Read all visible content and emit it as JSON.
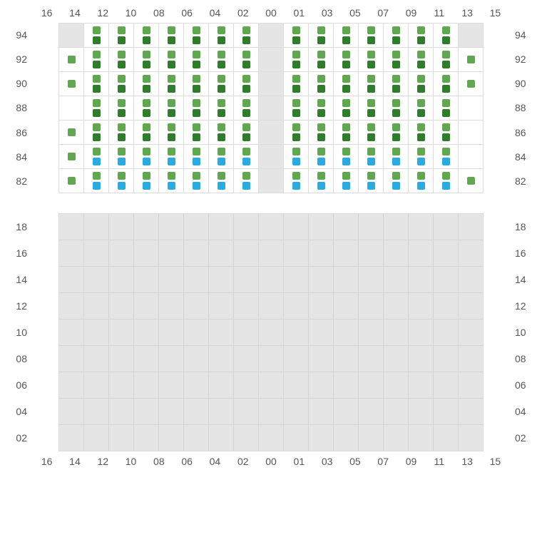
{
  "colors": {
    "green_light": "#5fa850",
    "green_dark": "#2f7d2a",
    "blue": "#29abe2",
    "cell_bg": "#ffffff",
    "grid_bg": "#e5e5e5",
    "border": "#dcdcdc",
    "text": "#555555"
  },
  "columns": [
    "16",
    "14",
    "12",
    "10",
    "08",
    "06",
    "04",
    "02",
    "00",
    "01",
    "03",
    "05",
    "07",
    "09",
    "11",
    "13",
    "15"
  ],
  "upper": {
    "row_labels": [
      "94",
      "92",
      "90",
      "88",
      "86",
      "84",
      "82"
    ],
    "gap_col_index": 8,
    "rows": [
      {
        "label": "94",
        "cells": [
          null,
          [
            "g",
            "d"
          ],
          [
            "g",
            "d"
          ],
          [
            "g",
            "d"
          ],
          [
            "g",
            "d"
          ],
          [
            "g",
            "d"
          ],
          [
            "g",
            "d"
          ],
          [
            "g",
            "d"
          ],
          null,
          [
            "g",
            "d"
          ],
          [
            "g",
            "d"
          ],
          [
            "g",
            "d"
          ],
          [
            "g",
            "d"
          ],
          [
            "g",
            "d"
          ],
          [
            "g",
            "d"
          ],
          [
            "g",
            "d"
          ],
          null
        ]
      },
      {
        "label": "92",
        "cells": [
          [
            "g"
          ],
          [
            "g",
            "d"
          ],
          [
            "g",
            "d"
          ],
          [
            "g",
            "d"
          ],
          [
            "g",
            "d"
          ],
          [
            "g",
            "d"
          ],
          [
            "g",
            "d"
          ],
          [
            "g",
            "d"
          ],
          null,
          [
            "g",
            "d"
          ],
          [
            "g",
            "d"
          ],
          [
            "g",
            "d"
          ],
          [
            "g",
            "d"
          ],
          [
            "g",
            "d"
          ],
          [
            "g",
            "d"
          ],
          [
            "g",
            "d"
          ],
          [
            "g"
          ]
        ]
      },
      {
        "label": "90",
        "cells": [
          [
            "g"
          ],
          [
            "g",
            "d"
          ],
          [
            "g",
            "d"
          ],
          [
            "g",
            "d"
          ],
          [
            "g",
            "d"
          ],
          [
            "g",
            "d"
          ],
          [
            "g",
            "d"
          ],
          [
            "g",
            "d"
          ],
          null,
          [
            "g",
            "d"
          ],
          [
            "g",
            "d"
          ],
          [
            "g",
            "d"
          ],
          [
            "g",
            "d"
          ],
          [
            "g",
            "d"
          ],
          [
            "g",
            "d"
          ],
          [
            "g",
            "d"
          ],
          [
            "g"
          ]
        ]
      },
      {
        "label": "88",
        "cells": [
          [],
          [
            "g",
            "d"
          ],
          [
            "g",
            "d"
          ],
          [
            "g",
            "d"
          ],
          [
            "g",
            "d"
          ],
          [
            "g",
            "d"
          ],
          [
            "g",
            "d"
          ],
          [
            "g",
            "d"
          ],
          null,
          [
            "g",
            "d"
          ],
          [
            "g",
            "d"
          ],
          [
            "g",
            "d"
          ],
          [
            "g",
            "d"
          ],
          [
            "g",
            "d"
          ],
          [
            "g",
            "d"
          ],
          [
            "g",
            "d"
          ],
          []
        ]
      },
      {
        "label": "86",
        "cells": [
          [
            "g"
          ],
          [
            "g",
            "d"
          ],
          [
            "g",
            "d"
          ],
          [
            "g",
            "d"
          ],
          [
            "g",
            "d"
          ],
          [
            "g",
            "d"
          ],
          [
            "g",
            "d"
          ],
          [
            "g",
            "d"
          ],
          null,
          [
            "g",
            "d"
          ],
          [
            "g",
            "d"
          ],
          [
            "g",
            "d"
          ],
          [
            "g",
            "d"
          ],
          [
            "g",
            "d"
          ],
          [
            "g",
            "d"
          ],
          [
            "g",
            "d"
          ],
          []
        ]
      },
      {
        "label": "84",
        "cells": [
          [
            "g"
          ],
          [
            "g",
            "b"
          ],
          [
            "g",
            "b"
          ],
          [
            "g",
            "b"
          ],
          [
            "g",
            "b"
          ],
          [
            "g",
            "b"
          ],
          [
            "g",
            "b"
          ],
          [
            "g",
            "b"
          ],
          null,
          [
            "g",
            "b"
          ],
          [
            "g",
            "b"
          ],
          [
            "g",
            "b"
          ],
          [
            "g",
            "b"
          ],
          [
            "g",
            "b"
          ],
          [
            "g",
            "b"
          ],
          [
            "g",
            "b"
          ],
          []
        ]
      },
      {
        "label": "82",
        "cells": [
          [
            "g"
          ],
          [
            "g",
            "b"
          ],
          [
            "g",
            "b"
          ],
          [
            "g",
            "b"
          ],
          [
            "g",
            "b"
          ],
          [
            "g",
            "b"
          ],
          [
            "g",
            "b"
          ],
          [
            "g",
            "b"
          ],
          null,
          [
            "g",
            "b"
          ],
          [
            "g",
            "b"
          ],
          [
            "g",
            "b"
          ],
          [
            "g",
            "b"
          ],
          [
            "g",
            "b"
          ],
          [
            "g",
            "b"
          ],
          [
            "g",
            "b"
          ],
          [
            "g"
          ]
        ]
      }
    ]
  },
  "lower": {
    "row_labels": [
      "18",
      "16",
      "14",
      "12",
      "10",
      "08",
      "06",
      "04",
      "02"
    ]
  }
}
